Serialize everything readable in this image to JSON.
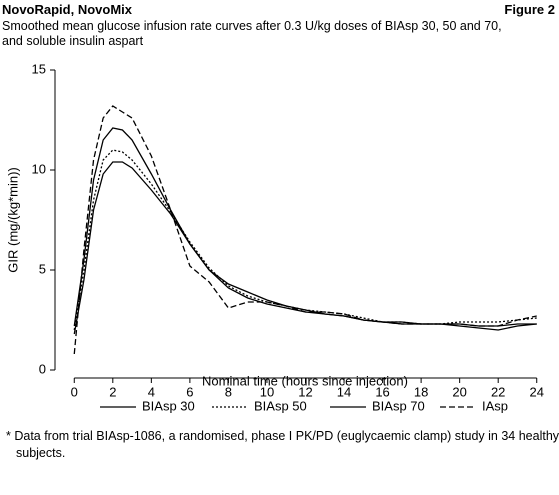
{
  "chart_data": {
    "type": "line",
    "header": "NovoRapid, NovoMix",
    "figure": "Figure 2",
    "title": "Smoothed mean glucose infusion rate curves after 0.3 U/kg doses of BIAsp 30, 50 and 70, and soluble insulin aspart",
    "ylabel": "GIR (mg/(kg*min))",
    "xlabel": "Nominal time (hours since injection)",
    "footnote": "* Data from trial BIAsp-1086, a randomised, phase I PK/PD (euglycaemic clamp) study in 34 healthy subjects.",
    "x": [
      0,
      0.5,
      1,
      1.5,
      2,
      2.5,
      3,
      4,
      5,
      6,
      7,
      8,
      9,
      10,
      11,
      12,
      13,
      14,
      15,
      16,
      17,
      18,
      19,
      20,
      21,
      22,
      23,
      24
    ],
    "series": [
      {
        "name": "BIAsp 30",
        "color": "#000000",
        "line_style": "solid",
        "values": [
          1.8,
          4.5,
          8,
          9.8,
          10.4,
          10.4,
          10.1,
          9,
          7.8,
          6.3,
          5,
          4.3,
          3.9,
          3.5,
          3.2,
          3.0,
          2.8,
          2.7,
          2.5,
          2.4,
          2.4,
          2.3,
          2.3,
          2.3,
          2.2,
          2.2,
          2.3,
          2.3
        ]
      },
      {
        "name": "BIAsp 50",
        "color": "#000000",
        "line_style": "dotted",
        "values": [
          2.0,
          5,
          8.5,
          10.5,
          11,
          10.9,
          10.5,
          9.3,
          7.9,
          6.4,
          5.1,
          4.2,
          3.7,
          3.4,
          3.2,
          3.0,
          2.9,
          2.8,
          2.6,
          2.4,
          2.4,
          2.3,
          2.3,
          2.4,
          2.4,
          2.4,
          2.5,
          2.6
        ]
      },
      {
        "name": "BIAsp 70",
        "color": "#000000",
        "line_style": "solid",
        "values": [
          2.2,
          5.5,
          9.5,
          11.5,
          12.1,
          12,
          11.5,
          9.8,
          8,
          6.3,
          5,
          4.1,
          3.6,
          3.3,
          3.1,
          2.9,
          2.8,
          2.7,
          2.5,
          2.4,
          2.3,
          2.3,
          2.3,
          2.2,
          2.1,
          2.0,
          2.2,
          2.3
        ]
      },
      {
        "name": "IAsp",
        "color": "#000000",
        "line_style": "dashed",
        "values": [
          0.8,
          6,
          10.5,
          12.6,
          13.2,
          12.9,
          12.6,
          10.7,
          8,
          5.2,
          4.4,
          3.1,
          3.4,
          3.4,
          3.2,
          2.9,
          2.9,
          2.8,
          2.5,
          2.4,
          2.3,
          2.3,
          2.3,
          2.3,
          2.2,
          2.2,
          2.5,
          2.7
        ]
      }
    ],
    "xlim": [
      -1,
      25
    ],
    "xticks": [
      0,
      2,
      4,
      6,
      8,
      10,
      12,
      14,
      16,
      18,
      20,
      22,
      24
    ],
    "ylim": [
      0,
      15
    ],
    "yticks": [
      0,
      5,
      10,
      15
    ],
    "grid": false,
    "legend": "bottom"
  }
}
